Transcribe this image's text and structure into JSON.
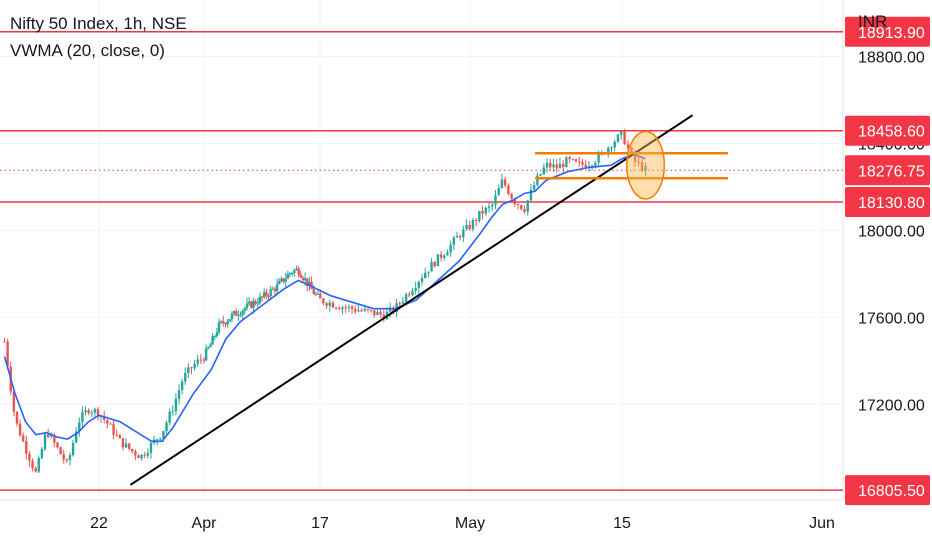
{
  "header": {
    "title": "Nifty 50 Index, 1h, NSE",
    "indicator": "VWMA (20, close, 0)",
    "currency": "INR"
  },
  "colors": {
    "up": "#26a69a",
    "down": "#ef5350",
    "vwma": "#2962ff",
    "level": "#f23645",
    "orange": "#f57c00",
    "trend": "#000000",
    "grid": "#f0f3fa",
    "axis_text": "#131722"
  },
  "chart_data": {
    "type": "candlestick",
    "symbol": "Nifty 50 Index",
    "interval": "1h",
    "exchange": "NSE",
    "indicator": "VWMA (20, close, 0)",
    "y_range": [
      16760,
      19060
    ],
    "y_ticks": [
      "17200.00",
      "17600.00",
      "18000.00",
      "18400.00",
      "18800.00"
    ],
    "x_ticks": [
      "22",
      "Apr",
      "17",
      "May",
      "15",
      "Jun"
    ],
    "x_tick_dates": [
      "2023-03-22",
      "2023-04-01",
      "2023-04-17",
      "2023-05-01",
      "2023-05-15",
      "2023-06-01"
    ],
    "price_labels": [
      {
        "value": 18913.9,
        "label": "18913.90"
      },
      {
        "value": 18458.6,
        "label": "18458.60"
      },
      {
        "value": 18276.75,
        "label": "18276.75",
        "current": true
      },
      {
        "value": 18130.8,
        "label": "18130.80"
      },
      {
        "value": 16805.5,
        "label": "16805.50"
      }
    ],
    "horizontal_levels": [
      18913.9,
      18458.6,
      18130.8,
      16805.5
    ],
    "orange_levels": [
      {
        "value": 18355,
        "from": "2023-05-07",
        "to": "2023-05-24"
      },
      {
        "value": 18240,
        "from": "2023-05-07",
        "to": "2023-05-24"
      }
    ],
    "trendline": {
      "from": {
        "date": "2023-03-25",
        "value": 16830
      },
      "to": {
        "date": "2023-05-21",
        "value": 18530
      }
    },
    "highlight_ellipse": {
      "center_date": "2023-05-17",
      "center_value": 18300,
      "date_radius": 1.6,
      "value_radius": 155
    },
    "path_points": [
      [
        "2023-03-13",
        17490
      ],
      [
        "2023-03-14",
        17130
      ],
      [
        "2023-03-15",
        17000
      ],
      [
        "2023-03-16",
        16880
      ],
      [
        "2023-03-17",
        17080
      ],
      [
        "2023-03-18",
        17000
      ],
      [
        "2023-03-19",
        16920
      ],
      [
        "2023-03-20",
        17120
      ],
      [
        "2023-03-21",
        17180
      ],
      [
        "2023-03-22",
        17160
      ],
      [
        "2023-03-23",
        17100
      ],
      [
        "2023-03-24",
        17030
      ],
      [
        "2023-03-25",
        16990
      ],
      [
        "2023-03-26",
        16960
      ],
      [
        "2023-03-28",
        17070
      ],
      [
        "2023-03-29",
        17180
      ],
      [
        "2023-03-30",
        17320
      ],
      [
        "2023-03-31",
        17380
      ],
      [
        "2023-04-01",
        17420
      ],
      [
        "2023-04-02",
        17480
      ],
      [
        "2023-04-03",
        17560
      ],
      [
        "2023-04-05",
        17610
      ],
      [
        "2023-04-07",
        17650
      ],
      [
        "2023-04-09",
        17690
      ],
      [
        "2023-04-11",
        17740
      ],
      [
        "2023-04-13",
        17810
      ],
      [
        "2023-04-14",
        17820
      ],
      [
        "2023-04-15",
        17770
      ],
      [
        "2023-04-16",
        17720
      ],
      [
        "2023-04-17",
        17680
      ],
      [
        "2023-04-19",
        17650
      ],
      [
        "2023-04-21",
        17630
      ],
      [
        "2023-04-23",
        17610
      ],
      [
        "2023-04-24",
        17640
      ],
      [
        "2023-04-25",
        17700
      ],
      [
        "2023-04-26",
        17760
      ],
      [
        "2023-04-27",
        17820
      ],
      [
        "2023-04-28",
        17870
      ],
      [
        "2023-04-29",
        17920
      ],
      [
        "2023-04-30",
        17980
      ],
      [
        "2023-05-01",
        18020
      ],
      [
        "2023-05-02",
        18080
      ],
      [
        "2023-05-03",
        18110
      ],
      [
        "2023-05-04",
        18230
      ],
      [
        "2023-05-05",
        18140
      ],
      [
        "2023-05-06",
        18100
      ],
      [
        "2023-05-07",
        18220
      ],
      [
        "2023-05-08",
        18300
      ],
      [
        "2023-05-09",
        18290
      ],
      [
        "2023-05-10",
        18320
      ],
      [
        "2023-05-11",
        18300
      ],
      [
        "2023-05-12",
        18310
      ],
      [
        "2023-05-13",
        18340
      ],
      [
        "2023-05-14",
        18400
      ],
      [
        "2023-05-15",
        18440
      ],
      [
        "2023-05-16",
        18320
      ],
      [
        "2023-05-17",
        18280
      ]
    ],
    "vwma_points": [
      [
        "2023-03-13",
        17420
      ],
      [
        "2023-03-14",
        17250
      ],
      [
        "2023-03-15",
        17120
      ],
      [
        "2023-03-16",
        17060
      ],
      [
        "2023-03-17",
        17070
      ],
      [
        "2023-03-18",
        17050
      ],
      [
        "2023-03-19",
        17040
      ],
      [
        "2023-03-20",
        17070
      ],
      [
        "2023-03-21",
        17120
      ],
      [
        "2023-03-22",
        17150
      ],
      [
        "2023-03-24",
        17120
      ],
      [
        "2023-03-26",
        17060
      ],
      [
        "2023-03-27",
        17030
      ],
      [
        "2023-03-28",
        17030
      ],
      [
        "2023-03-29",
        17090
      ],
      [
        "2023-03-30",
        17170
      ],
      [
        "2023-03-31",
        17250
      ],
      [
        "2023-04-02",
        17360
      ],
      [
        "2023-04-04",
        17500
      ],
      [
        "2023-04-06",
        17580
      ],
      [
        "2023-04-08",
        17630
      ],
      [
        "2023-04-10",
        17680
      ],
      [
        "2023-04-12",
        17730
      ],
      [
        "2023-04-14",
        17770
      ],
      [
        "2023-04-16",
        17740
      ],
      [
        "2023-04-18",
        17700
      ],
      [
        "2023-04-20",
        17670
      ],
      [
        "2023-04-22",
        17640
      ],
      [
        "2023-04-24",
        17640
      ],
      [
        "2023-04-26",
        17680
      ],
      [
        "2023-04-28",
        17770
      ],
      [
        "2023-04-30",
        17860
      ],
      [
        "2023-05-02",
        17990
      ],
      [
        "2023-05-03",
        18060
      ],
      [
        "2023-05-04",
        18120
      ],
      [
        "2023-05-05",
        18140
      ],
      [
        "2023-05-06",
        18170
      ],
      [
        "2023-05-07",
        18180
      ],
      [
        "2023-05-08",
        18230
      ],
      [
        "2023-05-10",
        18270
      ],
      [
        "2023-05-12",
        18290
      ],
      [
        "2023-05-14",
        18300
      ],
      [
        "2023-05-15",
        18330
      ],
      [
        "2023-05-16",
        18350
      ],
      [
        "2023-05-17",
        18330
      ]
    ]
  }
}
